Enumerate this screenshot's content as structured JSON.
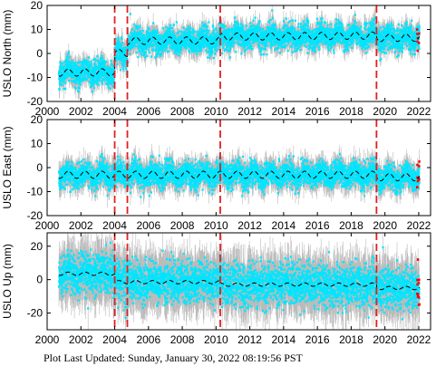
{
  "footer": {
    "label": "Plot Last Updated:",
    "timestamp": "Sunday, January 30, 2022 08:19:56 PST"
  },
  "colors": {
    "error_bar": "#aaaaaa",
    "points": "#00e5ff",
    "model": "#000000",
    "break_line": "#e02020",
    "recent_points": "#ff0000"
  },
  "chart_data": [
    {
      "type": "scatter",
      "ylabel": "USLO North (mm)",
      "xlim": [
        2000,
        2022.7
      ],
      "ylim": [
        -20,
        20
      ],
      "x_ticks": [
        2000,
        2002,
        2004,
        2006,
        2008,
        2010,
        2012,
        2014,
        2016,
        2018,
        2020,
        2022
      ],
      "y_ticks": [
        -20,
        -10,
        0,
        10,
        20
      ],
      "breaks": [
        2004.0,
        2004.75,
        2010.25,
        2019.5
      ],
      "data_start": 2000.7,
      "data_end": 2022.05,
      "segments": [
        {
          "start": 2000.7,
          "end": 2004.0,
          "offset": -8
        },
        {
          "start": 2004.0,
          "end": 2004.75,
          "offset": 0
        },
        {
          "start": 2004.75,
          "end": 2010.25,
          "offset": 5
        },
        {
          "start": 2010.25,
          "end": 2019.5,
          "offset": 6.5
        },
        {
          "start": 2019.5,
          "end": 2022.05,
          "offset": 5.5
        }
      ],
      "trend": 0.05,
      "seasonal_amplitude": 1.5,
      "noise": 2.5,
      "error_bar": 3
    },
    {
      "type": "scatter",
      "ylabel": "USLO East (mm)",
      "xlim": [
        2000,
        2022.7
      ],
      "ylim": [
        -20,
        20
      ],
      "x_ticks": [
        2000,
        2002,
        2004,
        2006,
        2008,
        2010,
        2012,
        2014,
        2016,
        2018,
        2020,
        2022
      ],
      "y_ticks": [
        -20,
        -10,
        0,
        10,
        20
      ],
      "breaks": [
        2004.0,
        2004.75,
        2010.25,
        2019.5
      ],
      "data_start": 2000.7,
      "data_end": 2022.05,
      "segments": [
        {
          "start": 2000.7,
          "end": 2019.5,
          "offset": -3
        },
        {
          "start": 2019.5,
          "end": 2022.05,
          "offset": -4
        }
      ],
      "trend": 0,
      "seasonal_amplitude": 1.5,
      "noise": 2.5,
      "error_bar": 3.5
    },
    {
      "type": "scatter",
      "ylabel": "USLO Up (mm)",
      "xlim": [
        2000,
        2022.7
      ],
      "ylim": [
        -30,
        28
      ],
      "x_ticks": [
        2000,
        2002,
        2004,
        2006,
        2008,
        2010,
        2012,
        2014,
        2016,
        2018,
        2020,
        2022
      ],
      "y_ticks": [
        -20,
        0,
        20
      ],
      "breaks": [
        2004.0,
        2004.75,
        2010.25,
        2019.5
      ],
      "data_start": 2000.7,
      "data_end": 2022.05,
      "segments": [
        {
          "start": 2000.7,
          "end": 2004.0,
          "offset": 3.5
        },
        {
          "start": 2004.0,
          "end": 2010.25,
          "offset": -1.5
        },
        {
          "start": 2010.25,
          "end": 2019.5,
          "offset": -3
        },
        {
          "start": 2019.5,
          "end": 2022.05,
          "offset": -5
        }
      ],
      "trend": 0,
      "seasonal_amplitude": 1,
      "noise": 6,
      "error_bar": 10
    }
  ]
}
